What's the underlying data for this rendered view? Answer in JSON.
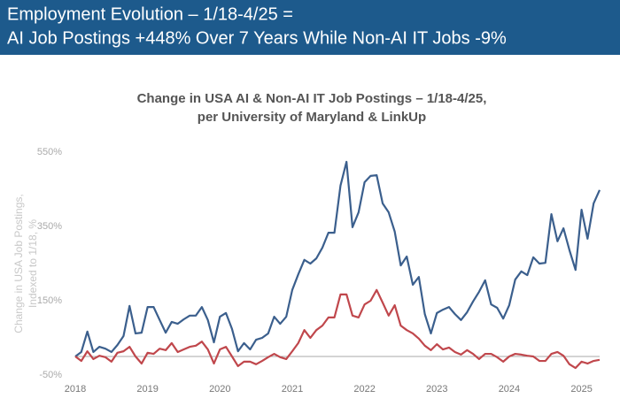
{
  "header": [
    "Employment Evolution – 1/18-4/25 =",
    "AI Job Postings +448% Over 7 Years While Non-AI IT Jobs -9%"
  ],
  "chart_data": {
    "type": "line",
    "title": [
      "Change in USA AI & Non-AI IT Job Postings – 1/18-4/25,",
      "per University of Maryland & LinkUp"
    ],
    "ylabel": [
      "Change in USA Job Postings,",
      "Indexed to 1/18, %"
    ],
    "x": [
      2018,
      2018.083,
      2018.167,
      2018.25,
      2018.333,
      2018.417,
      2018.5,
      2018.583,
      2018.667,
      2018.75,
      2018.833,
      2018.917,
      2019,
      2019.083,
      2019.167,
      2019.25,
      2019.333,
      2019.417,
      2019.5,
      2019.583,
      2019.667,
      2019.75,
      2019.833,
      2019.917,
      2020,
      2020.083,
      2020.167,
      2020.25,
      2020.333,
      2020.417,
      2020.5,
      2020.583,
      2020.667,
      2020.75,
      2020.833,
      2020.917,
      2021,
      2021.083,
      2021.167,
      2021.25,
      2021.333,
      2021.417,
      2021.5,
      2021.583,
      2021.667,
      2021.75,
      2021.833,
      2021.917,
      2022,
      2022.083,
      2022.167,
      2022.25,
      2022.333,
      2022.417,
      2022.5,
      2022.583,
      2022.667,
      2022.75,
      2022.833,
      2022.917,
      2023,
      2023.083,
      2023.167,
      2023.25,
      2023.333,
      2023.417,
      2023.5,
      2023.583,
      2023.667,
      2023.75,
      2023.833,
      2023.917,
      2024,
      2024.083,
      2024.167,
      2024.25,
      2024.333,
      2024.417,
      2024.5,
      2024.583,
      2024.667,
      2024.75,
      2024.833,
      2024.917,
      2025,
      2025.083,
      2025.167,
      2025.25
    ],
    "series": [
      {
        "color": "#3b5f8d",
        "values": [
          0,
          12,
          67,
          12,
          26,
          21,
          12,
          31,
          55,
          136,
          62,
          64,
          133,
          133,
          98,
          64,
          93,
          88,
          100,
          110,
          110,
          133,
          98,
          38,
          107,
          117,
          74,
          14,
          36,
          19,
          45,
          50,
          62,
          107,
          88,
          107,
          179,
          221,
          260,
          250,
          264,
          293,
          333,
          333,
          460,
          524,
          348,
          388,
          469,
          486,
          488,
          412,
          388,
          336,
          245,
          269,
          193,
          214,
          114,
          62,
          117,
          126,
          133,
          114,
          98,
          119,
          148,
          174,
          205,
          140,
          131,
          102,
          138,
          207,
          229,
          219,
          267,
          250,
          252,
          383,
          310,
          345,
          286,
          233,
          395,
          317,
          412,
          448
        ]
      },
      {
        "color": "#c0474c",
        "values": [
          0,
          -12,
          14,
          -7,
          2,
          -2,
          -14,
          10,
          14,
          26,
          0,
          -19,
          10,
          7,
          21,
          17,
          36,
          12,
          19,
          26,
          29,
          40,
          19,
          -19,
          19,
          26,
          0,
          -26,
          -14,
          -14,
          -21,
          -12,
          -2,
          7,
          -2,
          -7,
          14,
          36,
          71,
          50,
          71,
          83,
          105,
          105,
          167,
          167,
          110,
          105,
          140,
          150,
          179,
          145,
          110,
          138,
          83,
          71,
          62,
          48,
          29,
          17,
          33,
          19,
          24,
          12,
          5,
          17,
          7,
          -7,
          7,
          7,
          -2,
          -14,
          0,
          7,
          5,
          2,
          0,
          -12,
          -12,
          7,
          12,
          2,
          -21,
          -31,
          -14,
          -19,
          -12,
          -9
        ]
      }
    ],
    "xlim": [
      2018,
      2025.25
    ],
    "xticks": [
      2018,
      2019,
      2020,
      2021,
      2022,
      2023,
      2024,
      2025
    ],
    "ylim": [
      -50,
      550
    ],
    "yticks": [
      {
        "value": -50,
        "label": "-50%"
      },
      {
        "value": 150,
        "label": "150%"
      },
      {
        "value": 350,
        "label": "350%"
      },
      {
        "value": 550,
        "label": "550%"
      }
    ]
  }
}
